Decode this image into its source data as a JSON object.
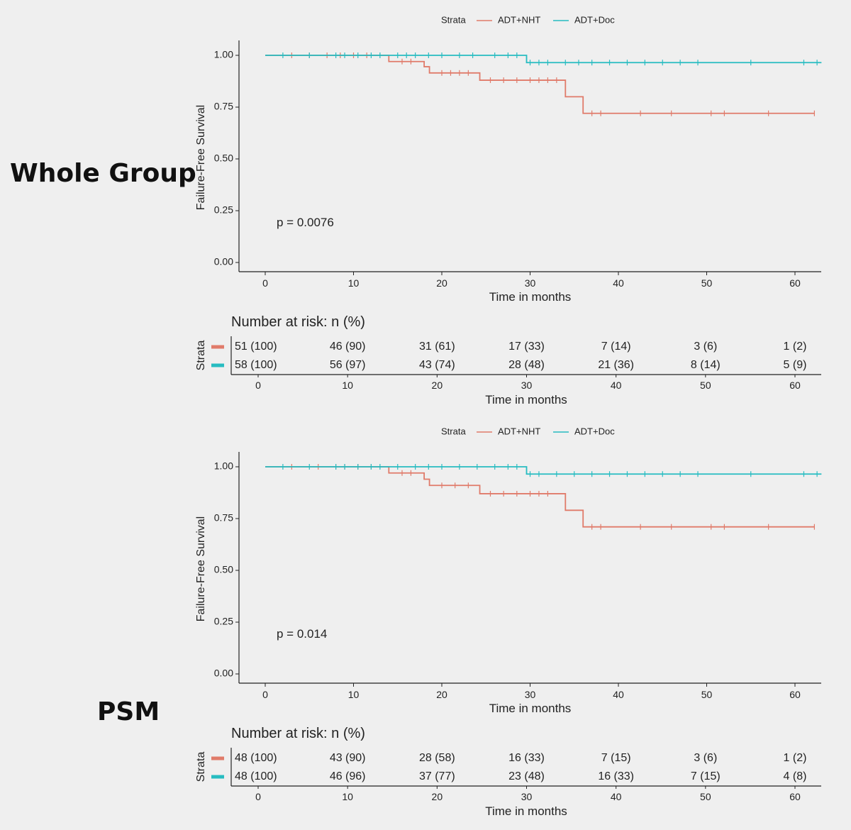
{
  "section_labels": [
    "Whole Group",
    "PSM"
  ],
  "colors": {
    "ADT+NHT": "#e07b6a",
    "ADT+Doc": "#27bcc1",
    "axis": "#222222",
    "background": "#efefef"
  },
  "chart_data": [
    {
      "type": "line",
      "subtype": "kaplan-meier step",
      "panel": "Whole Group",
      "legend_title": "Strata",
      "legend_position": "top",
      "ylabel": "Failure-Free Survival",
      "xlabel": "Time in months",
      "xlim": [
        -3,
        63
      ],
      "ylim": [
        0,
        1.04
      ],
      "xticks": [
        0,
        10,
        20,
        30,
        40,
        50,
        60
      ],
      "yticks": [
        "0.00",
        "0.25",
        "0.50",
        "0.75",
        "1.00"
      ],
      "grid": false,
      "annotation": "p = 0.0076",
      "series": [
        {
          "name": "ADT+NHT",
          "steps": [
            [
              0,
              1.0
            ],
            [
              14,
              0.97
            ],
            [
              18,
              0.945
            ],
            [
              18.6,
              0.915
            ],
            [
              24.3,
              0.88
            ],
            [
              34,
              0.8
            ],
            [
              36,
              0.72
            ],
            [
              62.2,
              0.72
            ]
          ],
          "censors": [
            [
              3,
              1.0
            ],
            [
              5,
              1.0
            ],
            [
              7,
              1.0
            ],
            [
              8.5,
              1.0
            ],
            [
              10,
              1.0
            ],
            [
              11.5,
              1.0
            ],
            [
              15.5,
              0.97
            ],
            [
              16.5,
              0.97
            ],
            [
              20,
              0.915
            ],
            [
              21,
              0.915
            ],
            [
              22,
              0.915
            ],
            [
              23,
              0.915
            ],
            [
              25.5,
              0.88
            ],
            [
              27,
              0.88
            ],
            [
              28.5,
              0.88
            ],
            [
              30,
              0.88
            ],
            [
              31,
              0.88
            ],
            [
              32,
              0.88
            ],
            [
              33,
              0.88
            ],
            [
              37,
              0.72
            ],
            [
              38,
              0.72
            ],
            [
              42.5,
              0.72
            ],
            [
              46,
              0.72
            ],
            [
              50.5,
              0.72
            ],
            [
              52,
              0.72
            ],
            [
              57,
              0.72
            ],
            [
              62.2,
              0.72
            ]
          ]
        },
        {
          "name": "ADT+Doc",
          "steps": [
            [
              0,
              1.0
            ],
            [
              29.6,
              0.965
            ],
            [
              63,
              0.965
            ]
          ],
          "censors": [
            [
              2,
              1.0
            ],
            [
              5,
              1.0
            ],
            [
              8,
              1.0
            ],
            [
              9,
              1.0
            ],
            [
              10.5,
              1.0
            ],
            [
              12,
              1.0
            ],
            [
              13,
              1.0
            ],
            [
              15,
              1.0
            ],
            [
              16,
              1.0
            ],
            [
              17,
              1.0
            ],
            [
              18.5,
              1.0
            ],
            [
              20,
              1.0
            ],
            [
              22,
              1.0
            ],
            [
              23.5,
              1.0
            ],
            [
              26,
              1.0
            ],
            [
              27.5,
              1.0
            ],
            [
              28.5,
              1.0
            ],
            [
              30,
              0.965
            ],
            [
              31,
              0.965
            ],
            [
              32,
              0.965
            ],
            [
              34,
              0.965
            ],
            [
              35.5,
              0.965
            ],
            [
              37,
              0.965
            ],
            [
              39,
              0.965
            ],
            [
              41,
              0.965
            ],
            [
              43,
              0.965
            ],
            [
              45,
              0.965
            ],
            [
              47,
              0.965
            ],
            [
              49,
              0.965
            ],
            [
              55,
              0.965
            ],
            [
              61,
              0.965
            ],
            [
              62.5,
              0.965
            ]
          ]
        }
      ],
      "risk_table": {
        "title": "Number at risk: n (%)",
        "ylabel": "Strata",
        "xlabel": "Time in months",
        "times": [
          0,
          10,
          20,
          30,
          40,
          50,
          60
        ],
        "rows": [
          {
            "name": "ADT+NHT",
            "values": [
              "51 (100)",
              "46 (90)",
              "31 (61)",
              "17 (33)",
              "7 (14)",
              "3 (6)",
              "1 (2)"
            ]
          },
          {
            "name": "ADT+Doc",
            "values": [
              "58 (100)",
              "56 (97)",
              "43 (74)",
              "28 (48)",
              "21 (36)",
              "8 (14)",
              "5 (9)"
            ]
          }
        ]
      }
    },
    {
      "type": "line",
      "subtype": "kaplan-meier step",
      "panel": "PSM",
      "legend_title": "Strata",
      "legend_position": "top",
      "ylabel": "Failure-Free Survival",
      "xlabel": "Time in months",
      "xlim": [
        -3,
        63
      ],
      "ylim": [
        0,
        1.04
      ],
      "xticks": [
        0,
        10,
        20,
        30,
        40,
        50,
        60
      ],
      "yticks": [
        "0.00",
        "0.25",
        "0.50",
        "0.75",
        "1.00"
      ],
      "grid": false,
      "annotation": "p = 0.014",
      "series": [
        {
          "name": "ADT+NHT",
          "steps": [
            [
              0,
              1.0
            ],
            [
              14,
              0.97
            ],
            [
              18,
              0.94
            ],
            [
              18.6,
              0.91
            ],
            [
              24.3,
              0.87
            ],
            [
              34,
              0.79
            ],
            [
              36,
              0.71
            ],
            [
              62.2,
              0.71
            ]
          ],
          "censors": [
            [
              3,
              1.0
            ],
            [
              6,
              1.0
            ],
            [
              8,
              1.0
            ],
            [
              9,
              1.0
            ],
            [
              10.5,
              1.0
            ],
            [
              12,
              1.0
            ],
            [
              15.5,
              0.97
            ],
            [
              16.5,
              0.97
            ],
            [
              20,
              0.91
            ],
            [
              21.5,
              0.91
            ],
            [
              23,
              0.91
            ],
            [
              25.5,
              0.87
            ],
            [
              27,
              0.87
            ],
            [
              28.5,
              0.87
            ],
            [
              30,
              0.87
            ],
            [
              31,
              0.87
            ],
            [
              32,
              0.87
            ],
            [
              37,
              0.71
            ],
            [
              38,
              0.71
            ],
            [
              42.5,
              0.71
            ],
            [
              46,
              0.71
            ],
            [
              50.5,
              0.71
            ],
            [
              52,
              0.71
            ],
            [
              57,
              0.71
            ],
            [
              62.2,
              0.71
            ]
          ]
        },
        {
          "name": "ADT+Doc",
          "steps": [
            [
              0,
              1.0
            ],
            [
              29.6,
              0.965
            ],
            [
              63,
              0.965
            ]
          ],
          "censors": [
            [
              2,
              1.0
            ],
            [
              5,
              1.0
            ],
            [
              8,
              1.0
            ],
            [
              9,
              1.0
            ],
            [
              10.5,
              1.0
            ],
            [
              12,
              1.0
            ],
            [
              13,
              1.0
            ],
            [
              15,
              1.0
            ],
            [
              17,
              1.0
            ],
            [
              18.5,
              1.0
            ],
            [
              20,
              1.0
            ],
            [
              22,
              1.0
            ],
            [
              24,
              1.0
            ],
            [
              26,
              1.0
            ],
            [
              27.5,
              1.0
            ],
            [
              28.5,
              1.0
            ],
            [
              30,
              0.965
            ],
            [
              31,
              0.965
            ],
            [
              33,
              0.965
            ],
            [
              35,
              0.965
            ],
            [
              37,
              0.965
            ],
            [
              39,
              0.965
            ],
            [
              41,
              0.965
            ],
            [
              43,
              0.965
            ],
            [
              45,
              0.965
            ],
            [
              47,
              0.965
            ],
            [
              49,
              0.965
            ],
            [
              55,
              0.965
            ],
            [
              61,
              0.965
            ],
            [
              62.5,
              0.965
            ]
          ]
        }
      ],
      "risk_table": {
        "title": "Number at risk: n (%)",
        "ylabel": "Strata",
        "xlabel": "Time in months",
        "times": [
          0,
          10,
          20,
          30,
          40,
          50,
          60
        ],
        "rows": [
          {
            "name": "ADT+NHT",
            "values": [
              "48 (100)",
              "43 (90)",
              "28 (58)",
              "16 (33)",
              "7 (15)",
              "3 (6)",
              "1 (2)"
            ]
          },
          {
            "name": "ADT+Doc",
            "values": [
              "48 (100)",
              "46 (96)",
              "37 (77)",
              "23 (48)",
              "16 (33)",
              "7 (15)",
              "4 (8)"
            ]
          }
        ]
      }
    }
  ]
}
